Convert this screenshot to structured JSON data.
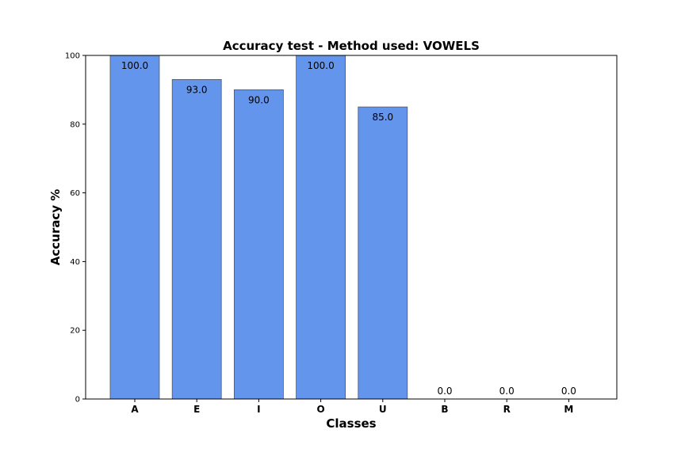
{
  "chart_data": {
    "type": "bar",
    "title": "Accuracy test - Method used: VOWELS",
    "xlabel": "Classes",
    "ylabel": "Accuracy %",
    "categories": [
      "A",
      "E",
      "I",
      "O",
      "U",
      "B",
      "R",
      "M"
    ],
    "values": [
      100.0,
      93.0,
      90.0,
      100.0,
      85.0,
      0.0,
      0.0,
      0.0
    ],
    "value_labels": [
      "100.0",
      "93.0",
      "90.0",
      "100.0",
      "85.0",
      "0.0",
      "0.0",
      "0.0"
    ],
    "ylim": [
      0,
      100
    ],
    "yticks": [
      "0",
      "20",
      "40",
      "60",
      "80",
      "100"
    ],
    "grid": false,
    "bar_color": "#6495ED",
    "bar_edge_color": "#555555"
  }
}
